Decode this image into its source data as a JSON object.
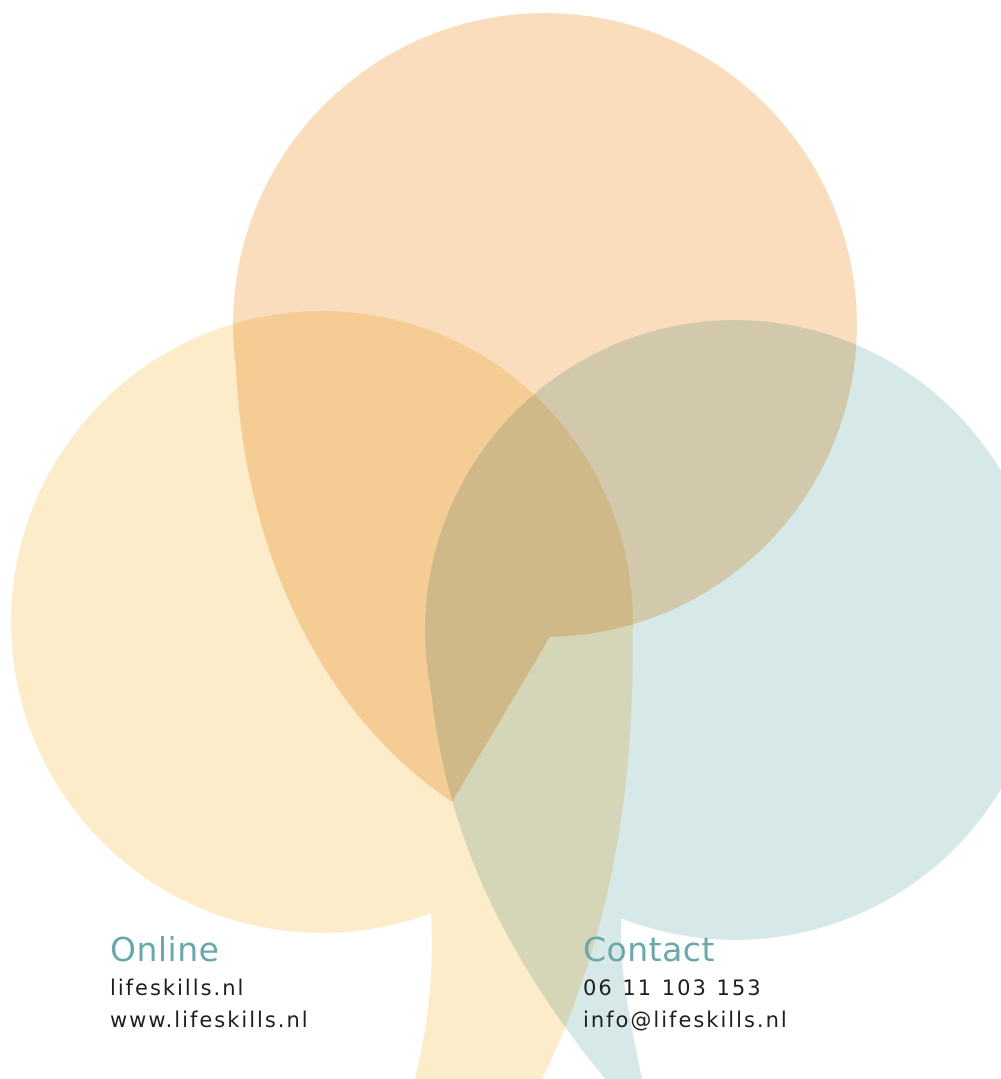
{
  "online": {
    "heading": "Online",
    "lines": [
      "lifeskills.nl",
      "www.lifeskills.nl"
    ]
  },
  "contact": {
    "heading": "Contact",
    "lines": [
      "06 11 103 153",
      "info@lifeskills.nl"
    ]
  }
}
